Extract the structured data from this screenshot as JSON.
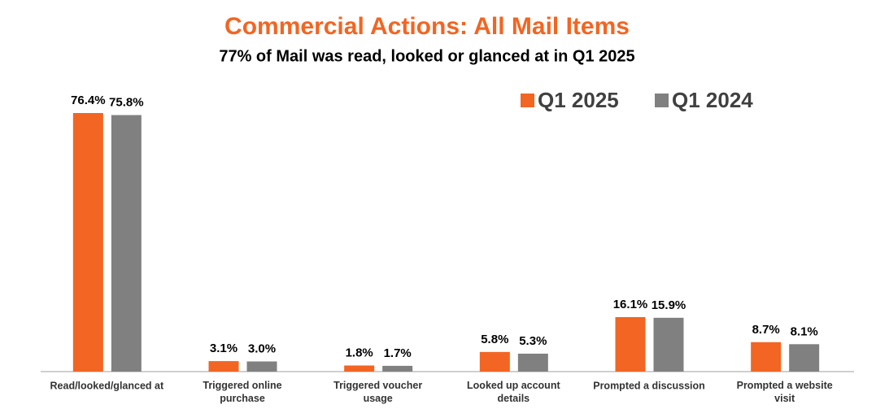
{
  "chart_data": {
    "type": "bar",
    "title": "Commercial Actions: All Mail Items",
    "subtitle": "77% of Mail was read, looked or glanced at in Q1 2025",
    "categories": [
      "Read/looked/glanced at",
      "Triggered online purchase",
      "Triggered voucher usage",
      "Looked up account details",
      "Prompted a discussion",
      "Prompted a website visit"
    ],
    "series": [
      {
        "name": "Q1 2025",
        "color": "#f26522",
        "values": [
          76.4,
          3.1,
          1.8,
          5.8,
          16.1,
          8.7
        ],
        "value_labels": [
          "76.4%",
          "3.1%",
          "1.8%",
          "5.8%",
          "16.1%",
          "8.7%"
        ]
      },
      {
        "name": "Q1 2024",
        "color": "#808080",
        "values": [
          75.8,
          3.0,
          1.7,
          5.3,
          15.9,
          8.1
        ],
        "value_labels": [
          "75.8%",
          "3.0%",
          "1.7%",
          "5.3%",
          "15.9%",
          "8.1%"
        ]
      }
    ],
    "legend": "top-right"
  }
}
